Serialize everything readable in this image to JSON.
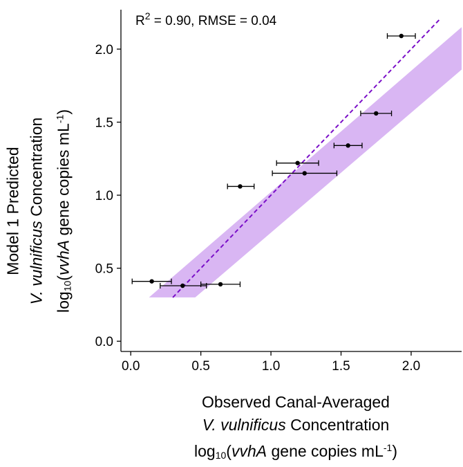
{
  "chart_data": {
    "type": "scatter",
    "annotation": {
      "r2_prefix": "R",
      "r2_sup": "2",
      "rest": " = 0.90, RMSE = 0.04"
    },
    "xlabel": {
      "line1": "Observed Canal-Averaged",
      "line2_italic": "V. vulnificus",
      "line2_rest": " Concentration",
      "line3_a": "log",
      "line3_sub": "10",
      "line3_b": "(",
      "line3_italic": "vvhA",
      "line3_c": " gene copies mL",
      "line3_sup": "-1",
      "line3_d": ")"
    },
    "ylabel": {
      "line1": "Model 1 Predicted",
      "line2_italic": "V. vulnificus",
      "line2_rest": " Concentration",
      "line3_a": "log",
      "line3_sub": "10",
      "line3_b": "(",
      "line3_italic": "vvhA",
      "line3_c": " gene copies mL",
      "line3_sup": "-1",
      "line3_d": ")"
    },
    "xlim": [
      -0.07,
      2.36
    ],
    "ylim": [
      -0.07,
      2.27
    ],
    "xticks": [
      0.0,
      0.5,
      1.0,
      1.5,
      2.0
    ],
    "xtick_labels": [
      "0.0",
      "0.5",
      "1.0",
      "1.5",
      "2.0"
    ],
    "yticks": [
      0.0,
      0.5,
      1.0,
      1.5,
      2.0
    ],
    "ytick_labels": [
      "0.0",
      "0.5",
      "1.0",
      "1.5",
      "2.0"
    ],
    "points": [
      {
        "x": 0.15,
        "y": 0.41,
        "xerr_low": 0.01,
        "xerr_high": 0.29
      },
      {
        "x": 0.37,
        "y": 0.38,
        "xerr_low": 0.21,
        "xerr_high": 0.54
      },
      {
        "x": 0.64,
        "y": 0.39,
        "xerr_low": 0.5,
        "xerr_high": 0.78
      },
      {
        "x": 0.78,
        "y": 1.06,
        "xerr_low": 0.69,
        "xerr_high": 0.88
      },
      {
        "x": 1.19,
        "y": 1.22,
        "xerr_low": 1.04,
        "xerr_high": 1.34
      },
      {
        "x": 1.24,
        "y": 1.15,
        "xerr_low": 1.01,
        "xerr_high": 1.47
      },
      {
        "x": 1.55,
        "y": 1.34,
        "xerr_low": 1.45,
        "xerr_high": 1.65
      },
      {
        "x": 1.75,
        "y": 1.56,
        "xerr_low": 1.64,
        "xerr_high": 1.86
      },
      {
        "x": 1.93,
        "y": 2.09,
        "xerr_low": 1.83,
        "xerr_high": 2.03
      }
    ],
    "fit_line": {
      "x": [
        0.3,
        2.2
      ],
      "y": [
        0.3,
        2.2
      ],
      "style": "dashed",
      "color": "#7a0ec8"
    },
    "confidence_band": {
      "color": "#d9b6f3",
      "upper": [
        [
          0.13,
          0.3
        ],
        [
          2.36,
          2.15
        ]
      ],
      "lower": [
        [
          2.36,
          1.86
        ],
        [
          0.46,
          0.3
        ]
      ]
    },
    "point_color": "#000000",
    "grid": false
  }
}
